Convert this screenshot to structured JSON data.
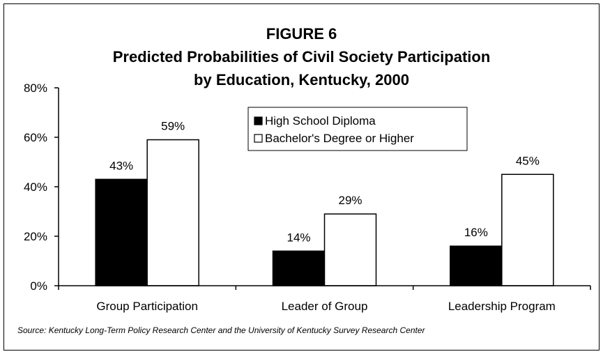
{
  "chart_data": {
    "type": "bar",
    "title": [
      "FIGURE 6",
      "Predicted Probabilities of Civil Society Participation",
      "by Education, Kentucky, 2000"
    ],
    "categories": [
      "Group Participation",
      "Leader of Group",
      "Leadership Program"
    ],
    "series": [
      {
        "name": "High School Diploma",
        "values": [
          43,
          14,
          16
        ],
        "labels": [
          "43%",
          "14%",
          "16%"
        ],
        "color": "#000000"
      },
      {
        "name": "Bachelor's Degree or Higher",
        "values": [
          59,
          29,
          45
        ],
        "labels": [
          "59%",
          "29%",
          "45%"
        ],
        "color": "#ffffff"
      }
    ],
    "ylim": [
      0,
      80
    ],
    "yticks": [
      0,
      20,
      40,
      60,
      80
    ],
    "ytick_labels": [
      "0%",
      "20%",
      "40%",
      "60%",
      "80%"
    ],
    "xlabel": "",
    "ylabel": "",
    "grid": false,
    "legend_position": "upper-center"
  },
  "source_note": "Source: Kentucky Long-Term Policy Research Center and the University of Kentucky Survey Research Center"
}
